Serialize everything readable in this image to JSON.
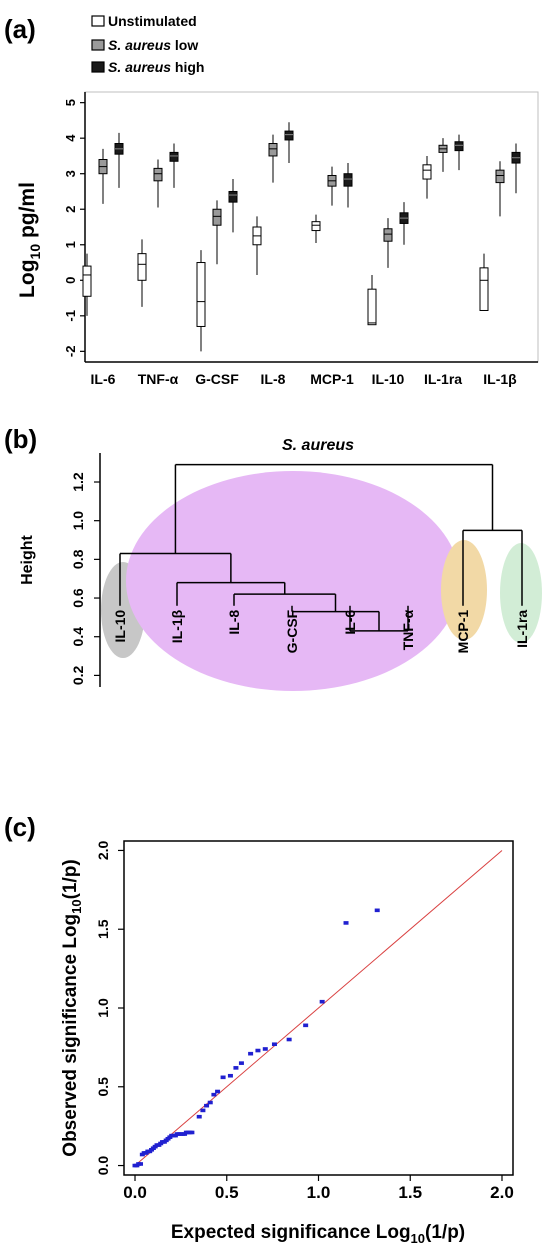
{
  "chart_data": [
    {
      "type": "box",
      "panel_label": "(a)",
      "ylabel_main": "Log",
      "ylabel_sub": "10",
      "ylabel_rest": " pg/ml",
      "categories": [
        "IL-6",
        "TNF-α",
        "G-CSF",
        "IL-8",
        "MCP-1",
        "IL-10",
        "IL-1ra",
        "IL-1β"
      ],
      "yticks": [
        "5",
        "4",
        "3",
        "2",
        "1",
        "0",
        "-1",
        "-2"
      ],
      "ylim": [
        -2.3,
        5.3
      ],
      "legend_position": "top-left",
      "series": [
        {
          "name": "Unstimulated",
          "color": "#ffffff",
          "boxes": [
            {
              "min": -1.0,
              "q1": -0.45,
              "median": 0.15,
              "q3": 0.4,
              "max": 0.75
            },
            {
              "min": -0.75,
              "q1": 0.0,
              "median": 0.45,
              "q3": 0.75,
              "max": 1.15
            },
            {
              "min": -2.0,
              "q1": -1.3,
              "median": -0.6,
              "q3": 0.5,
              "max": 0.85
            },
            {
              "min": 0.15,
              "q1": 1.0,
              "median": 1.25,
              "q3": 1.5,
              "max": 1.8
            },
            {
              "min": 1.05,
              "q1": 1.4,
              "median": 1.55,
              "q3": 1.65,
              "max": 1.85
            },
            {
              "min": -1.25,
              "q1": -1.25,
              "median": -1.2,
              "q3": -0.25,
              "max": 0.15
            },
            {
              "min": 2.3,
              "q1": 2.85,
              "median": 3.1,
              "q3": 3.25,
              "max": 3.5
            },
            {
              "min": -0.85,
              "q1": -0.85,
              "median": 0.0,
              "q3": 0.35,
              "max": 0.75
            }
          ]
        },
        {
          "name": "S. aureus low",
          "color": "#9a9a9a",
          "boxes": [
            {
              "min": 2.15,
              "q1": 3.0,
              "median": 3.2,
              "q3": 3.4,
              "max": 3.7
            },
            {
              "min": 2.05,
              "q1": 2.8,
              "median": 3.0,
              "q3": 3.15,
              "max": 3.4
            },
            {
              "min": 0.45,
              "q1": 1.55,
              "median": 1.8,
              "q3": 2.0,
              "max": 2.25
            },
            {
              "min": 2.75,
              "q1": 3.5,
              "median": 3.7,
              "q3": 3.85,
              "max": 4.1
            },
            {
              "min": 2.1,
              "q1": 2.65,
              "median": 2.8,
              "q3": 2.95,
              "max": 3.2
            },
            {
              "min": 0.35,
              "q1": 1.1,
              "median": 1.3,
              "q3": 1.45,
              "max": 1.75
            },
            {
              "min": 3.05,
              "q1": 3.6,
              "median": 3.7,
              "q3": 3.8,
              "max": 4.0
            },
            {
              "min": 1.8,
              "q1": 2.75,
              "median": 2.95,
              "q3": 3.1,
              "max": 3.35
            }
          ]
        },
        {
          "name": "S. aureus high",
          "color": "#1a1a1a",
          "boxes": [
            {
              "min": 2.6,
              "q1": 3.55,
              "median": 3.7,
              "q3": 3.85,
              "max": 4.15
            },
            {
              "min": 2.6,
              "q1": 3.35,
              "median": 3.5,
              "q3": 3.6,
              "max": 3.85
            },
            {
              "min": 1.35,
              "q1": 2.2,
              "median": 2.4,
              "q3": 2.5,
              "max": 2.85
            },
            {
              "min": 3.3,
              "q1": 3.95,
              "median": 4.1,
              "q3": 4.2,
              "max": 4.45
            },
            {
              "min": 2.05,
              "q1": 2.65,
              "median": 2.85,
              "q3": 3.0,
              "max": 3.3
            },
            {
              "min": 1.0,
              "q1": 1.6,
              "median": 1.75,
              "q3": 1.9,
              "max": 2.2
            },
            {
              "min": 3.1,
              "q1": 3.65,
              "median": 3.8,
              "q3": 3.9,
              "max": 4.1
            },
            {
              "min": 2.45,
              "q1": 3.3,
              "median": 3.45,
              "q3": 3.6,
              "max": 3.85
            }
          ]
        }
      ],
      "legend_labels": [
        {
          "prefix": "Unstimulated",
          "italic": "",
          "suffix": ""
        },
        {
          "prefix": "",
          "italic": "S. aureus",
          "suffix": " low"
        },
        {
          "prefix": "",
          "italic": "S. aureus",
          "suffix": " high"
        }
      ]
    },
    {
      "type": "dendrogram",
      "panel_label": "(b)",
      "title": "S. aureus",
      "ylabel": "Height",
      "yticks": [
        "0.2",
        "0.4",
        "0.6",
        "0.8",
        "1.0",
        "1.2"
      ],
      "ylim": [
        0.14,
        1.35
      ],
      "leaves": [
        "IL-10",
        "IL-1β",
        "IL-8",
        "G-CSF",
        "IL-6",
        "TNF-α",
        "MCP-1",
        "IL-1ra"
      ],
      "merges": [
        {
          "left": "IL-6",
          "right": "TNF-α",
          "height": 0.43
        },
        {
          "left": "G-CSF",
          "right": "IL-6+TNF-α",
          "height": 0.53
        },
        {
          "left": "IL-8",
          "right": "G-CSF+IL-6+TNF-α",
          "height": 0.62
        },
        {
          "left": "IL-1β",
          "right": "IL-8+G-CSF+IL-6+TNF-α",
          "height": 0.68
        },
        {
          "left": "IL-10",
          "right": "IL-1β+IL-8+G-CSF+IL-6+TNF-α",
          "height": 0.83
        },
        {
          "left": "MCP-1",
          "right": "IL-1ra",
          "height": 0.95
        },
        {
          "left": "IL-10+...",
          "right": "MCP-1+IL-1ra",
          "height": 1.29
        }
      ],
      "clusters": [
        {
          "members": [
            "IL-10"
          ],
          "color": "#c7c7c7"
        },
        {
          "members": [
            "IL-1β",
            "IL-8",
            "G-CSF",
            "IL-6",
            "TNF-α"
          ],
          "color": "#e6b8f5"
        },
        {
          "members": [
            "MCP-1"
          ],
          "color": "#f2d9a6"
        },
        {
          "members": [
            "IL-1ra"
          ],
          "color": "#d2edd6"
        }
      ]
    },
    {
      "type": "scatter",
      "panel_label": "(c)",
      "xlabel_main": "Expected significance Log",
      "xlabel_sub": "10",
      "xlabel_rest": "(1/p)",
      "ylabel_main": "Observed significance Log",
      "ylabel_sub": "10",
      "ylabel_rest": "(1/p)",
      "xticks": [
        "0.0",
        "0.5",
        "1.0",
        "1.5",
        "2.0"
      ],
      "yticks": [
        "0.0",
        "0.5",
        "1.0",
        "1.5",
        "2.0"
      ],
      "xlim": [
        -0.06,
        2.06
      ],
      "ylim": [
        -0.06,
        2.06
      ],
      "reference_line": {
        "from": [
          0,
          0
        ],
        "to": [
          2,
          2
        ],
        "color": "#d94040"
      },
      "point_color": "#2020d0",
      "points": [
        [
          0.0,
          0.0
        ],
        [
          0.01,
          0.0
        ],
        [
          0.02,
          0.01
        ],
        [
          0.03,
          0.01
        ],
        [
          0.04,
          0.07
        ],
        [
          0.05,
          0.08
        ],
        [
          0.06,
          0.08
        ],
        [
          0.07,
          0.09
        ],
        [
          0.08,
          0.09
        ],
        [
          0.09,
          0.1
        ],
        [
          0.1,
          0.11
        ],
        [
          0.11,
          0.12
        ],
        [
          0.12,
          0.13
        ],
        [
          0.13,
          0.13
        ],
        [
          0.14,
          0.14
        ],
        [
          0.15,
          0.15
        ],
        [
          0.16,
          0.15
        ],
        [
          0.17,
          0.16
        ],
        [
          0.18,
          0.17
        ],
        [
          0.19,
          0.18
        ],
        [
          0.2,
          0.19
        ],
        [
          0.21,
          0.19
        ],
        [
          0.22,
          0.19
        ],
        [
          0.23,
          0.2
        ],
        [
          0.24,
          0.2
        ],
        [
          0.25,
          0.2
        ],
        [
          0.26,
          0.2
        ],
        [
          0.27,
          0.2
        ],
        [
          0.28,
          0.21
        ],
        [
          0.29,
          0.21
        ],
        [
          0.3,
          0.21
        ],
        [
          0.31,
          0.21
        ],
        [
          0.35,
          0.31
        ],
        [
          0.37,
          0.35
        ],
        [
          0.39,
          0.38
        ],
        [
          0.41,
          0.4
        ],
        [
          0.43,
          0.45
        ],
        [
          0.45,
          0.47
        ],
        [
          0.48,
          0.56
        ],
        [
          0.52,
          0.57
        ],
        [
          0.55,
          0.62
        ],
        [
          0.58,
          0.65
        ],
        [
          0.63,
          0.71
        ],
        [
          0.67,
          0.73
        ],
        [
          0.71,
          0.74
        ],
        [
          0.76,
          0.77
        ],
        [
          0.84,
          0.8
        ],
        [
          0.93,
          0.89
        ],
        [
          1.02,
          1.04
        ],
        [
          1.15,
          1.54
        ],
        [
          1.32,
          1.62
        ]
      ]
    }
  ]
}
